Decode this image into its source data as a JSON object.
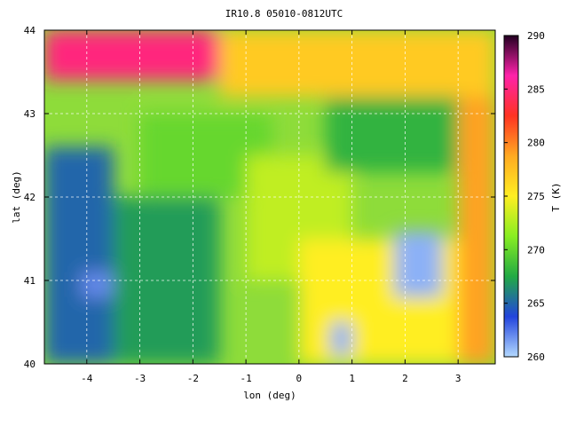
{
  "chart_data": {
    "type": "heatmap",
    "title": "IR10.8 05010-0812UTC",
    "xlabel": "lon (deg)",
    "ylabel": "lat (deg)",
    "xlim": [
      -4.8,
      3.7
    ],
    "ylim": [
      40,
      44
    ],
    "x_ticks": [
      "-4",
      "-3",
      "-2",
      "-1",
      "0",
      "1",
      "2",
      "3"
    ],
    "y_ticks": [
      "40",
      "41",
      "42",
      "43",
      "44"
    ],
    "grid": true,
    "colorbar": {
      "label": "T (K)",
      "range": [
        260,
        290
      ],
      "ticks": [
        "260",
        "265",
        "270",
        "275",
        "280",
        "285",
        "290"
      ],
      "colors": [
        "#b3d9ff",
        "#2244dd",
        "#22aa44",
        "#88ee22",
        "#ffee22",
        "#ffaa22",
        "#ff3322",
        "#ff22aa",
        "#220022"
      ]
    },
    "regions": [
      {
        "lon": [
          -4.8,
          -1.5
        ],
        "lat": [
          43.4,
          44
        ],
        "T": 285
      },
      {
        "lon": [
          -1.5,
          3.7
        ],
        "lat": [
          43.2,
          44
        ],
        "T": 277
      },
      {
        "lon": [
          -4.8,
          -3.5
        ],
        "lat": [
          40,
          42.6
        ],
        "T": 265
      },
      {
        "lon": [
          -3.5,
          -1.5
        ],
        "lat": [
          40,
          42.0
        ],
        "T": 267
      },
      {
        "lon": [
          -3.0,
          -0.5
        ],
        "lat": [
          42.0,
          43.0
        ],
        "T": 270
      },
      {
        "lon": [
          -1.0,
          1.0
        ],
        "lat": [
          41.0,
          42.5
        ],
        "T": 273
      },
      {
        "lon": [
          0.5,
          3.0
        ],
        "lat": [
          42.3,
          43.2
        ],
        "T": 268
      },
      {
        "lon": [
          0.0,
          3.0
        ],
        "lat": [
          40,
          41.5
        ],
        "T": 275
      },
      {
        "lon": [
          3.0,
          3.7
        ],
        "lat": [
          40,
          43.2
        ],
        "T": 279
      },
      {
        "lon": [
          1.8,
          2.7
        ],
        "lat": [
          40.8,
          41.6
        ],
        "T": 261
      },
      {
        "lon": [
          0.6,
          1.0
        ],
        "lat": [
          40.1,
          40.5
        ],
        "T": 261
      },
      {
        "lon": [
          -4.1,
          -3.5
        ],
        "lat": [
          40.8,
          41.1
        ],
        "T": 262
      }
    ]
  }
}
